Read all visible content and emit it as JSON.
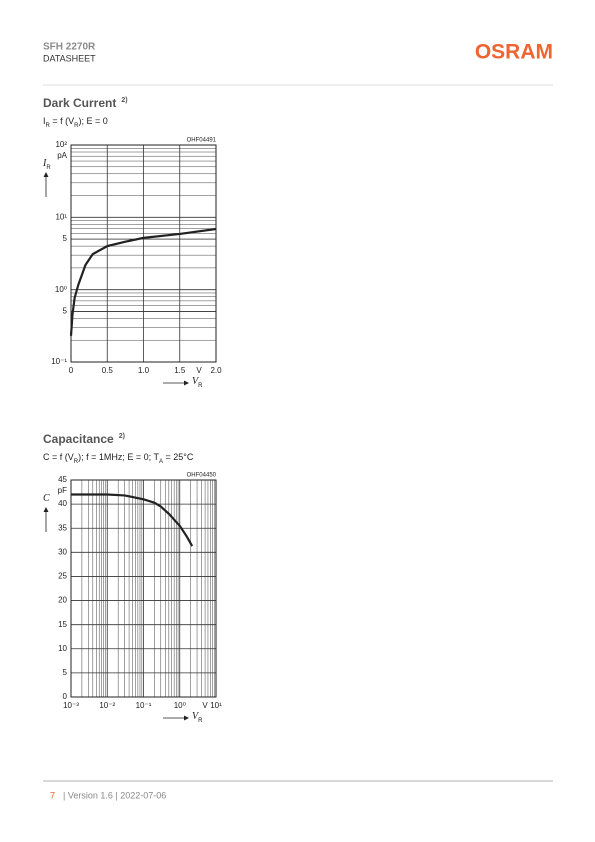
{
  "header": {
    "product": "SFH 2270R",
    "doc": "DATASHEET",
    "logo": "OSRAM"
  },
  "footer": {
    "page": "7",
    "info": "| Version 1.6 | 2022-07-06"
  },
  "chart_data": [
    {
      "type": "line",
      "title": "Dark Current",
      "title_note": "2)",
      "formula": [
        {
          "text": "I"
        },
        {
          "text": "R",
          "sub": true
        },
        {
          "text": " = f (V"
        },
        {
          "text": "R",
          "sub": true
        },
        {
          "text": "); E = 0"
        }
      ],
      "code": "OHF04491",
      "ylabel": "I",
      "ylabel_sub": "R",
      "yunit": "pA",
      "xlabel": "V",
      "xlabel_sub": "R",
      "xunit": "V",
      "ylog": true,
      "xlog": false,
      "grid": true,
      "color": "#222222",
      "x": [
        0,
        0.02,
        0.05,
        0.1,
        0.2,
        0.3,
        0.5,
        0.75,
        1.0,
        1.5,
        2.0
      ],
      "values": [
        0.23,
        0.45,
        0.77,
        1.16,
        2.2,
        3.1,
        4.0,
        4.6,
        5.2,
        5.9,
        6.9
      ],
      "xlim": [
        0,
        2
      ],
      "ylim": [
        0.1,
        100
      ],
      "xticks": [
        0,
        0.5,
        {
          "value": 1,
          "label": "1.0"
        },
        1.5,
        {
          "value": 2,
          "label": "2.0"
        }
      ],
      "yticks": [
        {
          "value": 0.1,
          "label": "10⁻¹"
        },
        {
          "value": 0.5,
          "label": "5"
        },
        {
          "value": 1,
          "label": "10⁰"
        },
        5,
        {
          "value": 10,
          "label": "10¹"
        },
        {
          "value": 100,
          "label": "10²"
        }
      ]
    },
    {
      "type": "line",
      "title": "Capacitance",
      "title_note": "2)",
      "formula": [
        {
          "text": "C = f (V"
        },
        {
          "text": "R",
          "sub": true
        },
        {
          "text": "); f = 1MHz; E = 0; T"
        },
        {
          "text": "A",
          "sub": true
        },
        {
          "text": " = 25°C"
        }
      ],
      "code": "OHF04450",
      "ylabel": "C",
      "ylabel_sub": "",
      "yunit": "pF",
      "xlabel": "V",
      "xlabel_sub": "R",
      "xunit": "V",
      "ylog": false,
      "xlog": true,
      "grid": true,
      "color": "#222222",
      "x": [
        0.001,
        0.01,
        0.03,
        0.1,
        0.2,
        0.3,
        0.5,
        1,
        1.5,
        2.2
      ],
      "values": [
        42,
        42,
        41.8,
        41,
        40.3,
        39.5,
        38,
        35.5,
        33.5,
        31.3
      ],
      "xlim": [
        0.001,
        10
      ],
      "ylim": [
        0,
        45
      ],
      "xticks": [
        {
          "value": 0.001,
          "label": "10⁻³"
        },
        {
          "value": 0.01,
          "label": "10⁻²"
        },
        {
          "value": 0.1,
          "label": "10⁻¹"
        },
        {
          "value": 1,
          "label": "10⁰"
        },
        {
          "value": 10,
          "label": "10¹"
        }
      ],
      "yticks": [
        0,
        5,
        10,
        15,
        20,
        25,
        30,
        35,
        40,
        45
      ]
    }
  ]
}
